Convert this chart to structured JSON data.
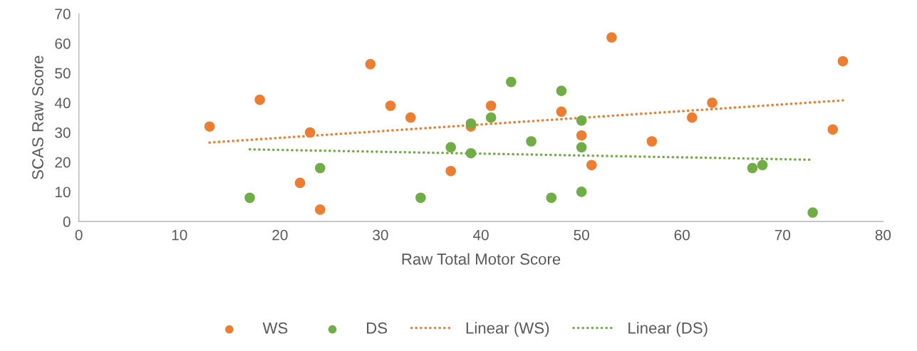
{
  "chart_data": {
    "type": "scatter",
    "xlabel": "Raw Total Motor Score",
    "ylabel": "SCAS Raw Score",
    "xlim": [
      0,
      80
    ],
    "xticks": [
      0,
      10,
      20,
      30,
      40,
      50,
      60,
      70,
      80
    ],
    "ylim": [
      0,
      70
    ],
    "yticks": [
      0,
      10,
      20,
      30,
      40,
      50,
      60,
      70
    ],
    "grid": false,
    "legend": "bottom",
    "marker": "circle",
    "series": [
      {
        "name": "WS",
        "color": "#ed7d31",
        "x": [
          13,
          18,
          22,
          23,
          24,
          29,
          31,
          33,
          37,
          39,
          41,
          48,
          50,
          51,
          53,
          57,
          61,
          63,
          75,
          76
        ],
        "values": [
          32,
          41,
          13,
          30,
          4,
          53,
          39,
          35,
          17,
          32,
          39,
          37,
          29,
          19,
          62,
          27,
          35,
          40,
          31,
          54
        ]
      },
      {
        "name": "DS",
        "color": "#70ad47",
        "x": [
          17,
          24,
          34,
          37,
          39,
          39,
          41,
          43,
          45,
          47,
          48,
          50,
          50,
          50,
          67,
          68,
          73
        ],
        "values": [
          8,
          18,
          8,
          25,
          33,
          23,
          35,
          47,
          27,
          8,
          44,
          34,
          25,
          10,
          18,
          19,
          3
        ]
      },
      {
        "name": "Linear (WS)",
        "type": "line",
        "line_style": "dotted",
        "marker": "none",
        "color": "#ed7d31",
        "x": [
          13,
          76
        ],
        "values": [
          26.6,
          40.8
        ]
      },
      {
        "name": "Linear (DS)",
        "type": "line",
        "line_style": "dotted",
        "marker": "none",
        "color": "#70ad47",
        "x": [
          17,
          73
        ],
        "values": [
          24.3,
          20.8
        ]
      }
    ]
  }
}
